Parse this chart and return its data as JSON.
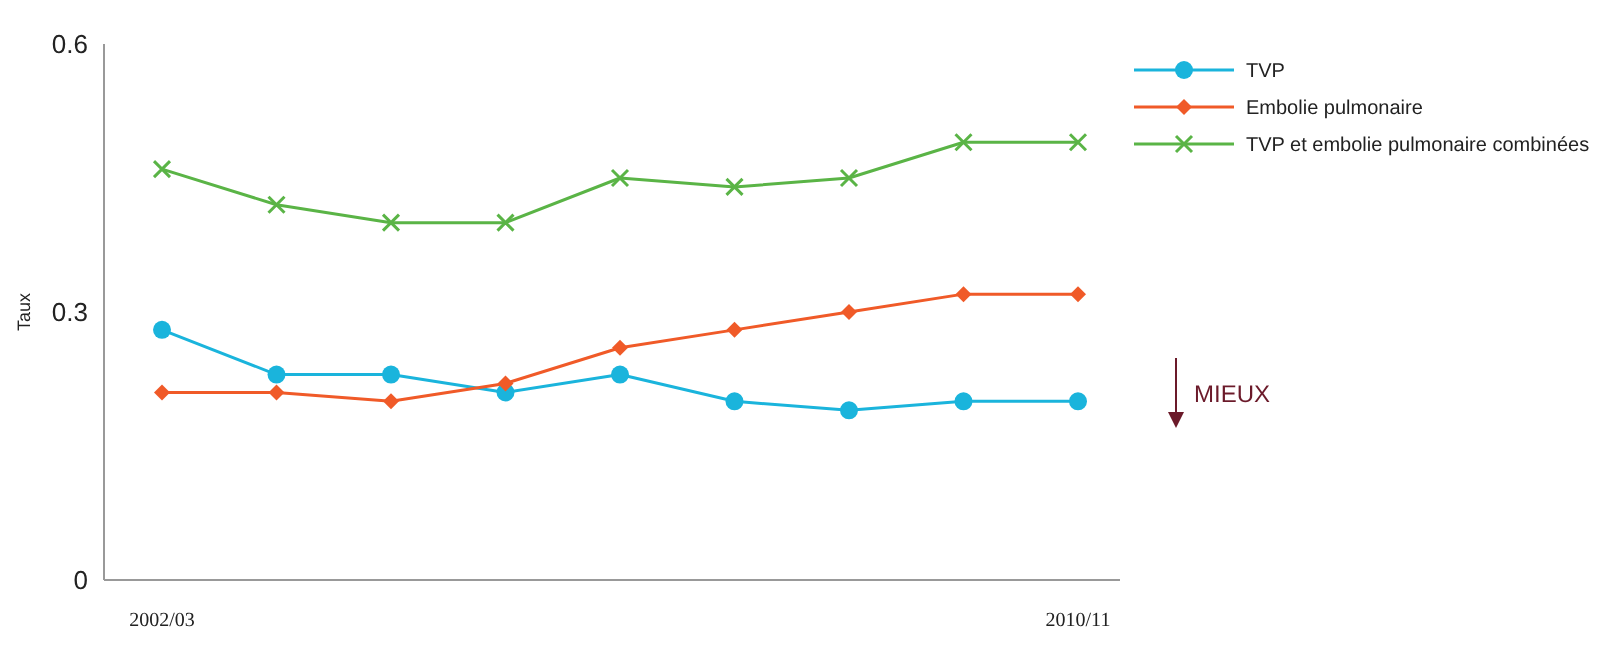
{
  "chart_data": {
    "type": "line",
    "ylabel": "Taux",
    "categories": [
      "2002/03",
      null,
      null,
      null,
      null,
      null,
      null,
      null,
      "2010/11"
    ],
    "series": [
      {
        "name": "TVP",
        "color": "#1ab4dc",
        "marker": "circle",
        "values": [
          0.28,
          0.23,
          0.23,
          0.21,
          0.23,
          0.2,
          0.19,
          0.2,
          0.2
        ]
      },
      {
        "name": "Embolie pulmonaire",
        "color": "#f05a28",
        "marker": "diamond",
        "values": [
          0.21,
          0.21,
          0.2,
          0.22,
          0.26,
          0.28,
          0.3,
          0.32,
          0.32
        ]
      },
      {
        "name": "TVP et embolie pulmonaire combinées",
        "color": "#5ab446",
        "marker": "cross",
        "values": [
          0.46,
          0.42,
          0.4,
          0.4,
          0.45,
          0.44,
          0.45,
          0.49,
          0.49
        ]
      }
    ],
    "ylim": [
      0,
      0.6
    ],
    "yticks": [
      0,
      0.3,
      0.6
    ],
    "grid": false,
    "legend": "top right",
    "annotations": [
      "MIEUX"
    ]
  }
}
